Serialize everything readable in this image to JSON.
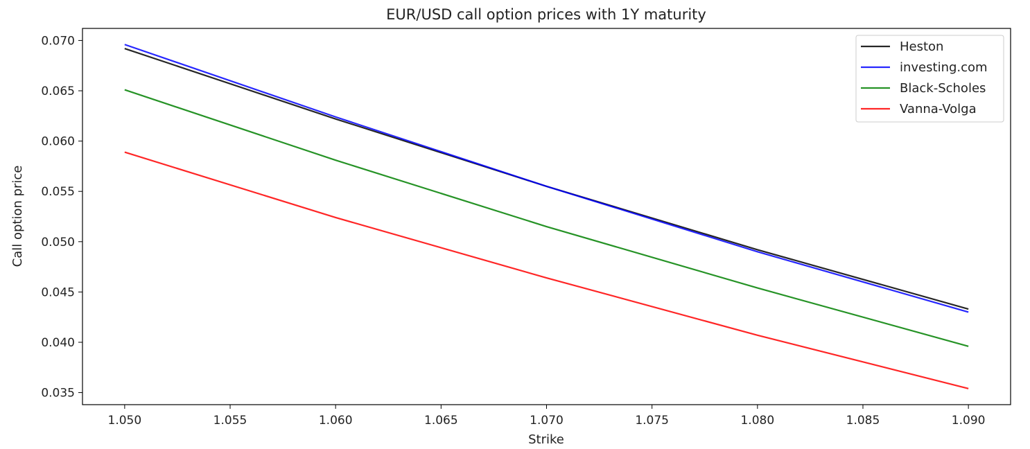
{
  "chart_data": {
    "type": "line",
    "title": "EUR/USD call option prices with 1Y maturity",
    "xlabel": "Strike",
    "ylabel": "Call option price",
    "xlim": [
      1.048,
      1.092
    ],
    "ylim": [
      0.0338,
      0.0712
    ],
    "xticks": [
      "1.050",
      "1.055",
      "1.060",
      "1.065",
      "1.070",
      "1.075",
      "1.080",
      "1.085",
      "1.090"
    ],
    "yticks": [
      "0.035",
      "0.040",
      "0.045",
      "0.050",
      "0.055",
      "0.060",
      "0.065",
      "0.070"
    ],
    "grid": false,
    "legend_position": "top-right",
    "x": [
      1.05,
      1.06,
      1.07,
      1.08,
      1.09
    ],
    "series": [
      {
        "name": "Heston",
        "color": "#000000",
        "values": [
          0.0692,
          0.0622,
          0.0555,
          0.0492,
          0.0433
        ]
      },
      {
        "name": "investing.com",
        "color": "#0000ff",
        "values": [
          0.0696,
          0.0624,
          0.0555,
          0.049,
          0.043
        ]
      },
      {
        "name": "Black-Scholes",
        "color": "#008000",
        "values": [
          0.0651,
          0.0581,
          0.0515,
          0.0454,
          0.0396
        ]
      },
      {
        "name": "Vanna-Volga",
        "color": "#ff0000",
        "values": [
          0.0589,
          0.0524,
          0.0464,
          0.0407,
          0.0354
        ]
      }
    ]
  }
}
